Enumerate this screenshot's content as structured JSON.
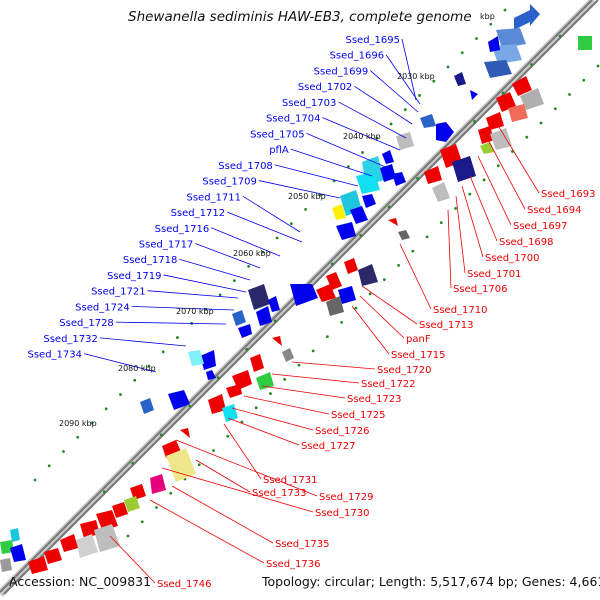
{
  "title": "Shewanella sediminis HAW-EB3, complete genome",
  "footer": {
    "accession": "Accession: NC_009831",
    "summary": "Topology: circular; Length: 5,517,674 bp; Genes: 4,661"
  },
  "colors": {
    "forward_strand": "#0000ee",
    "reverse_strand": "#ee0000",
    "backbone": "#777777",
    "tick": "#1f8a1f"
  },
  "kbp_labels": [
    "2030 kbp",
    "2040 kbp",
    "2050 kbp",
    "2060 kbp",
    "2070 kbp",
    "2080 kbp",
    "2090 kbp"
  ],
  "left_labels": [
    "Ssed_1695",
    "Ssed_1696",
    "Ssed_1699",
    "Ssed_1702",
    "Ssed_1703",
    "Ssed_1704",
    "Ssed_1705",
    "pflA",
    "Ssed_1708",
    "Ssed_1709",
    "Ssed_1711",
    "Ssed_1712",
    "Ssed_1716",
    "Ssed_1717",
    "Ssed_1718",
    "Ssed_1719",
    "Ssed_1721",
    "Ssed_1724",
    "Ssed_1728",
    "Ssed_1732",
    "Ssed_1734"
  ],
  "right_labels": [
    "Ssed_1693",
    "Ssed_1694",
    "Ssed_1697",
    "Ssed_1698",
    "Ssed_1700",
    "Ssed_1701",
    "Ssed_1706",
    "Ssed_1710",
    "Ssed_1713",
    "panF",
    "Ssed_1715",
    "Ssed_1720",
    "Ssed_1722",
    "Ssed_1723",
    "Ssed_1725",
    "Ssed_1726",
    "Ssed_1727",
    "Ssed_1731",
    "Ssed_1729",
    "Ssed_1733",
    "Ssed_1730",
    "Ssed_1735",
    "Ssed_1736",
    "Ssed_1746"
  ],
  "partial_tick_label": "kbp"
}
